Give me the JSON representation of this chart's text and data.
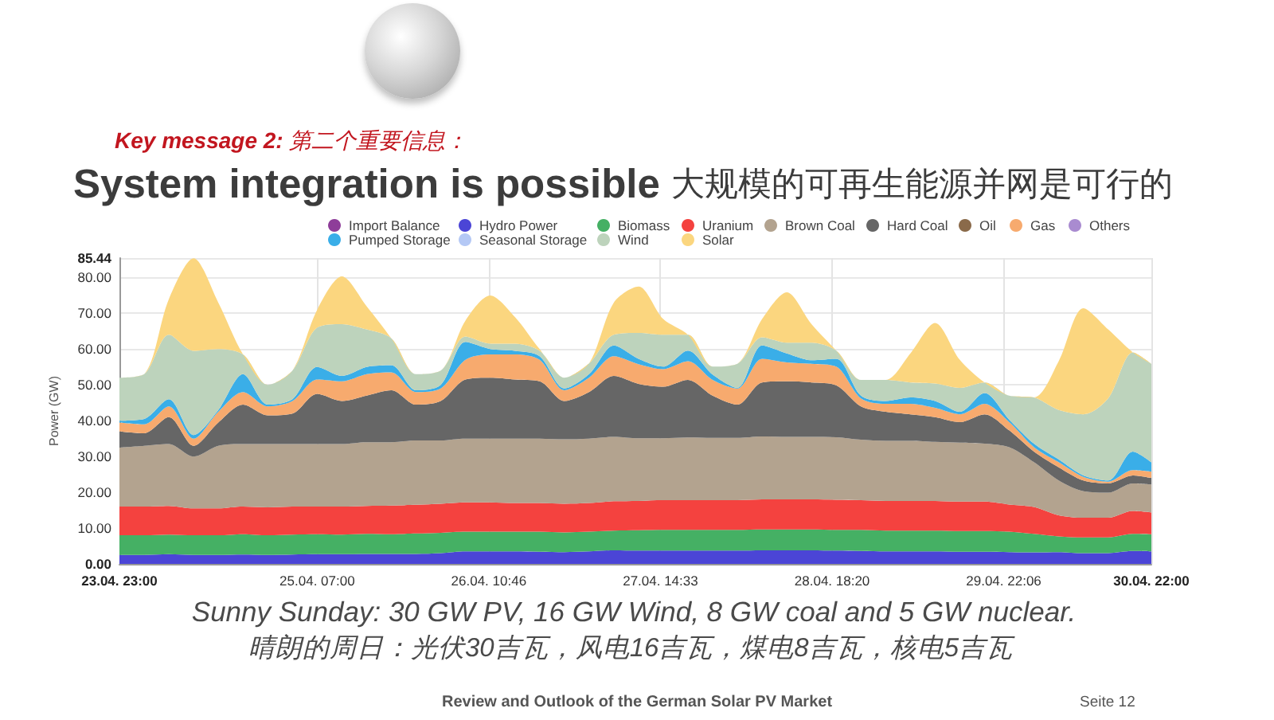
{
  "chart_data": {
    "type": "area",
    "stacked": true,
    "subtitle": "Key message 2: 第二个重要信息：",
    "title": "System integration is possible 大规模的可再生能源并网是可行的",
    "ylabel": "Power (GW)",
    "annotations": [
      "Sunny Sunday: 30 GW PV, 16 GW Wind, 8 GW coal and 5 GW nuclear.",
      "晴朗的周日：光伏30吉瓦，风电16吉瓦，煤电8吉瓦，核电5吉瓦",
      "Review and Outlook of the German Solar PV Market",
      "Seite 12"
    ],
    "x": [
      "--04-23T23:00",
      "--04-24T03:00",
      "--04-24T07:00",
      "--04-24T11:00",
      "--04-24T15:00",
      "--04-24T19:00",
      "--04-24T23:00",
      "--04-25T03:00",
      "--04-25T07:00",
      "--04-25T11:00",
      "--04-25T15:00",
      "--04-25T19:00",
      "--04-25T23:00",
      "--04-26T03:00",
      "--04-26T07:00",
      "--04-26T11:00",
      "--04-26T15:00",
      "--04-26T19:00",
      "--04-26T23:00",
      "--04-27T03:00",
      "--04-27T07:00",
      "--04-27T11:00",
      "--04-27T15:00",
      "--04-27T19:00",
      "--04-27T23:00",
      "--04-28T03:00",
      "--04-28T07:00",
      "--04-28T11:00",
      "--04-28T15:00",
      "--04-28T19:00",
      "--04-28T23:00",
      "--04-29T03:00",
      "--04-29T07:00",
      "--04-29T11:00",
      "--04-29T15:00",
      "--04-29T19:00",
      "--04-29T23:00",
      "--04-30T03:00",
      "--04-30T07:00",
      "--04-30T11:00",
      "--04-30T15:00",
      "--04-30T19:00",
      "--04-30T22:00"
    ],
    "xlim": [
      "--04-23T23:00",
      "--04-30T22:00"
    ],
    "xticks": [
      {
        "value": "--04-23T23:00",
        "label": "23.04. 23:00"
      },
      {
        "value": "--04-25T07:00",
        "label": "25.04. 07:00"
      },
      {
        "value": "--04-26T10:46",
        "label": "26.04. 10:46"
      },
      {
        "value": "--04-27T14:33",
        "label": "27.04. 14:33"
      },
      {
        "value": "--04-28T18:20",
        "label": "28.04. 18:20"
      },
      {
        "value": "--04-29T22:06",
        "label": "29.04. 22:06"
      },
      {
        "value": "--04-30T22:00",
        "label": "30.04. 22:00"
      }
    ],
    "ylim": [
      0,
      85.44
    ],
    "yticks": [
      {
        "value": 0,
        "label": "0.00"
      },
      {
        "value": 10,
        "label": "10.00"
      },
      {
        "value": 20,
        "label": "20.00"
      },
      {
        "value": 30,
        "label": "30.00"
      },
      {
        "value": 40,
        "label": "40.00"
      },
      {
        "value": 50,
        "label": "50.00"
      },
      {
        "value": 60,
        "label": "60.00"
      },
      {
        "value": 70,
        "label": "70.00"
      },
      {
        "value": 80,
        "label": "80.00"
      },
      85.44
    ],
    "grid": true,
    "legend": "top",
    "series": [
      {
        "name": "Import Balance",
        "color": "#8e3d99",
        "values": [
          null,
          null,
          null,
          null,
          null,
          null,
          null,
          null,
          null,
          null,
          null,
          null,
          null,
          null,
          null,
          null,
          null,
          null,
          null,
          null,
          null,
          null,
          null,
          null,
          null,
          null,
          null,
          null,
          null,
          null,
          null,
          null,
          null,
          null,
          null,
          null,
          null,
          null,
          null,
          null,
          null,
          null,
          null
        ]
      },
      {
        "name": "Hydro Power",
        "color": "#4b45d6",
        "values": [
          2.5,
          2.5,
          2.7,
          2.5,
          2.5,
          2.6,
          2.5,
          2.6,
          2.7,
          2.7,
          2.8,
          2.8,
          2.8,
          3,
          3.5,
          3.5,
          3.5,
          3.4,
          3.3,
          3.5,
          3.8,
          3.7,
          3.7,
          3.7,
          3.7,
          3.7,
          3.8,
          3.8,
          3.8,
          3.7,
          3.6,
          3.5,
          3.5,
          3.5,
          3.4,
          3.4,
          3.3,
          3.2,
          3.3,
          3,
          3,
          3.6,
          3.5
        ]
      },
      {
        "name": "Biomass",
        "color": "#45b064",
        "values": [
          5.5,
          5.5,
          5.5,
          5.5,
          5.5,
          5.7,
          5.5,
          5.6,
          5.6,
          5.5,
          5.6,
          5.5,
          5.7,
          5.7,
          5.5,
          5.5,
          5.5,
          5.6,
          5.5,
          5.5,
          5.5,
          5.7,
          5.8,
          5.8,
          5.8,
          5.8,
          5.8,
          5.8,
          5.8,
          5.8,
          5.9,
          5.8,
          5.8,
          5.8,
          5.8,
          5.8,
          5.7,
          5.2,
          4.4,
          4.4,
          4.4,
          4.8,
          4.8
        ]
      },
      {
        "name": "Uranium",
        "color": "#f4423f",
        "values": [
          8,
          8,
          8,
          7.5,
          7.5,
          7.7,
          7.8,
          7.8,
          7.7,
          7.8,
          7.8,
          8,
          8,
          8.1,
          8.2,
          8.2,
          8,
          8,
          8,
          8,
          8.2,
          8.2,
          8.3,
          8.3,
          8.3,
          8.3,
          8.4,
          8.4,
          8.4,
          8.4,
          8.3,
          8.3,
          8.3,
          8.3,
          8.2,
          8.2,
          7.6,
          7.5,
          5.9,
          5.5,
          5.5,
          6.4,
          6.1
        ]
      },
      {
        "name": "Brown Coal",
        "color": "#b3a38f",
        "values": [
          16.5,
          17,
          17.3,
          14.5,
          17.5,
          17.5,
          17.7,
          17.5,
          17.5,
          17.5,
          17.8,
          17.7,
          18,
          17.7,
          17.8,
          17.8,
          18,
          18,
          18,
          18,
          18,
          17.5,
          17.3,
          17.5,
          17.4,
          17.4,
          17.6,
          17.5,
          17.5,
          17.5,
          16.9,
          16.8,
          16.8,
          16.5,
          16.5,
          16.2,
          16,
          12.5,
          9.7,
          7.4,
          7,
          7.7,
          7.8
        ]
      },
      {
        "name": "Hard Coal",
        "color": "#666666",
        "values": [
          4.5,
          3.5,
          7.5,
          3,
          6.5,
          11,
          8,
          8.5,
          14,
          12,
          13,
          14.5,
          10,
          11,
          16.5,
          17,
          16.5,
          16,
          10.7,
          13,
          17,
          15.2,
          14.4,
          16.1,
          11.8,
          9.3,
          15.1,
          15.5,
          15.2,
          14.5,
          9.3,
          8.1,
          7.4,
          6.9,
          5.7,
          8.2,
          4.7,
          3,
          3.7,
          3,
          2.6,
          2.2,
          1.8
        ]
      },
      {
        "name": "Oil",
        "color": "#8a6a4a",
        "values": [
          null,
          null,
          null,
          null,
          null,
          null,
          null,
          null,
          null,
          null,
          null,
          null,
          null,
          null,
          null,
          null,
          null,
          null,
          null,
          null,
          null,
          null,
          null,
          null,
          null,
          null,
          null,
          null,
          null,
          null,
          null,
          null,
          null,
          null,
          null,
          null,
          null,
          null,
          null,
          null,
          null,
          null,
          null
        ]
      },
      {
        "name": "Gas",
        "color": "#f7aa6e",
        "values": [
          2.5,
          2.5,
          3,
          2,
          3,
          3.5,
          2.5,
          3.5,
          4,
          5.5,
          6,
          5,
          3.5,
          3.5,
          5.5,
          6.5,
          7,
          6,
          3,
          4,
          5.5,
          5.5,
          4.9,
          5.2,
          4.4,
          4.5,
          6.6,
          5.3,
          5.2,
          5.2,
          2.2,
          2.2,
          2.9,
          2.6,
          2.2,
          2.9,
          2.3,
          1.2,
          1.4,
          1,
          0.5,
          1.5,
          1.8
        ]
      },
      {
        "name": "Others",
        "color": "#a98bd0",
        "values": [
          null,
          null,
          null,
          null,
          null,
          null,
          null,
          null,
          null,
          null,
          null,
          null,
          null,
          null,
          null,
          null,
          null,
          null,
          null,
          null,
          null,
          null,
          null,
          null,
          null,
          null,
          null,
          null,
          null,
          null,
          null,
          null,
          null,
          null,
          null,
          null,
          null,
          null,
          null,
          null,
          null,
          null,
          null
        ]
      },
      {
        "name": "Pumped Storage",
        "color": "#3aaee8",
        "values": [
          0.5,
          1.5,
          2,
          1,
          0.5,
          5,
          0.5,
          0.5,
          3.5,
          1.5,
          2,
          2,
          0.5,
          1,
          5,
          1.5,
          1,
          1,
          0.5,
          1,
          3,
          1.5,
          0.7,
          3,
          1.5,
          0.2,
          3.7,
          2.5,
          1,
          2.2,
          0.8,
          0.8,
          1.8,
          1.9,
          0.7,
          3,
          0.7,
          1,
          0.8,
          0.4,
          0.3,
          5.2,
          2.6
        ]
      },
      {
        "name": "Seasonal Storage",
        "color": "#b4c8f5",
        "values": [
          null,
          null,
          null,
          null,
          null,
          null,
          null,
          null,
          null,
          null,
          null,
          null,
          null,
          null,
          null,
          null,
          null,
          null,
          null,
          null,
          null,
          null,
          null,
          null,
          null,
          null,
          null,
          null,
          null,
          null,
          null,
          null,
          null,
          null,
          null,
          null,
          null,
          null,
          null,
          null,
          null,
          null,
          null
        ]
      },
      {
        "name": "Wind",
        "color": "#bdd3bc",
        "values": [
          12,
          12.5,
          18,
          23.5,
          17,
          5.5,
          5.5,
          8,
          11,
          14.5,
          10.5,
          7.5,
          4.5,
          4,
          1.5,
          1.5,
          2,
          1.5,
          3,
          3,
          3,
          7.2,
          8.9,
          4.4,
          2.2,
          6.7,
          2.3,
          3,
          4.9,
          2.3,
          4.4,
          5.9,
          4.2,
          4.9,
          6.7,
          3,
          6.7,
          12.9,
          13.8,
          17.1,
          22.9,
          27.7,
          27.5
        ]
      },
      {
        "name": "Solar",
        "color": "#fbd67f",
        "values": [
          0,
          0,
          10,
          25.9,
          13,
          0,
          0,
          0,
          5,
          13.3,
          6.5,
          0,
          0,
          0,
          4.5,
          13.5,
          7.5,
          0.5,
          0,
          0,
          9,
          13,
          4.4,
          0,
          0,
          0,
          5.1,
          14.1,
          5.2,
          0,
          0,
          0,
          8.1,
          16.9,
          7.8,
          0,
          0,
          0,
          13.6,
          29.6,
          19.3,
          0,
          0
        ]
      }
    ]
  }
}
